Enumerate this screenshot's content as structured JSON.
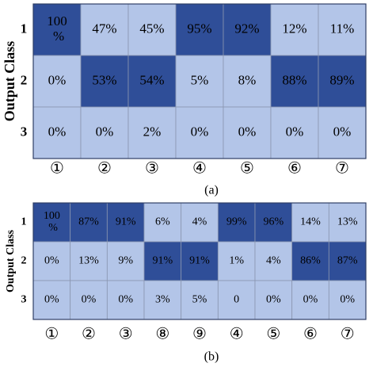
{
  "chart_data": [
    {
      "type": "heatmap",
      "ylabel": "Output Class",
      "caption": "(a)",
      "rows": [
        "1",
        "2",
        "3"
      ],
      "categories": [
        "①",
        "②",
        "③",
        "④",
        "⑤",
        "⑥",
        "⑦"
      ],
      "values": [
        [
          100,
          47,
          45,
          95,
          92,
          12,
          11
        ],
        [
          0,
          53,
          54,
          5,
          8,
          88,
          89
        ],
        [
          0,
          0,
          2,
          0,
          0,
          0,
          0
        ]
      ],
      "value_labels": [
        [
          "100 %",
          "47%",
          "45%",
          "95%",
          "92%",
          "12%",
          "11%"
        ],
        [
          "0%",
          "53%",
          "54%",
          "5%",
          "8%",
          "88%",
          "89%"
        ],
        [
          "0%",
          "0%",
          "2%",
          "0%",
          "0%",
          "0%",
          "0%"
        ]
      ],
      "colors": {
        "high": "#2f4e98",
        "low": "#b3c5e8"
      }
    },
    {
      "type": "heatmap",
      "ylabel": "Output Class",
      "caption": "(b)",
      "rows": [
        "1",
        "2",
        "3"
      ],
      "categories": [
        "①",
        "②",
        "③",
        "⑧",
        "⑨",
        "④",
        "⑤",
        "⑥",
        "⑦"
      ],
      "values": [
        [
          100,
          87,
          91,
          6,
          4,
          99,
          96,
          14,
          13
        ],
        [
          0,
          13,
          9,
          91,
          91,
          1,
          4,
          86,
          87
        ],
        [
          0,
          0,
          0,
          3,
          5,
          0,
          0,
          0,
          0
        ]
      ],
      "value_labels": [
        [
          "100 %",
          "87%",
          "91%",
          "6%",
          "4%",
          "99%",
          "96%",
          "14%",
          "13%"
        ],
        [
          "0%",
          "13%",
          "9%",
          "91%",
          "91%",
          "1%",
          "4%",
          "86%",
          "87%"
        ],
        [
          "0%",
          "0%",
          "0%",
          "3%",
          "5%",
          "0",
          "0%",
          "0%",
          "0%"
        ]
      ],
      "colors": {
        "high": "#2f4e98",
        "low": "#b3c5e8"
      }
    }
  ]
}
